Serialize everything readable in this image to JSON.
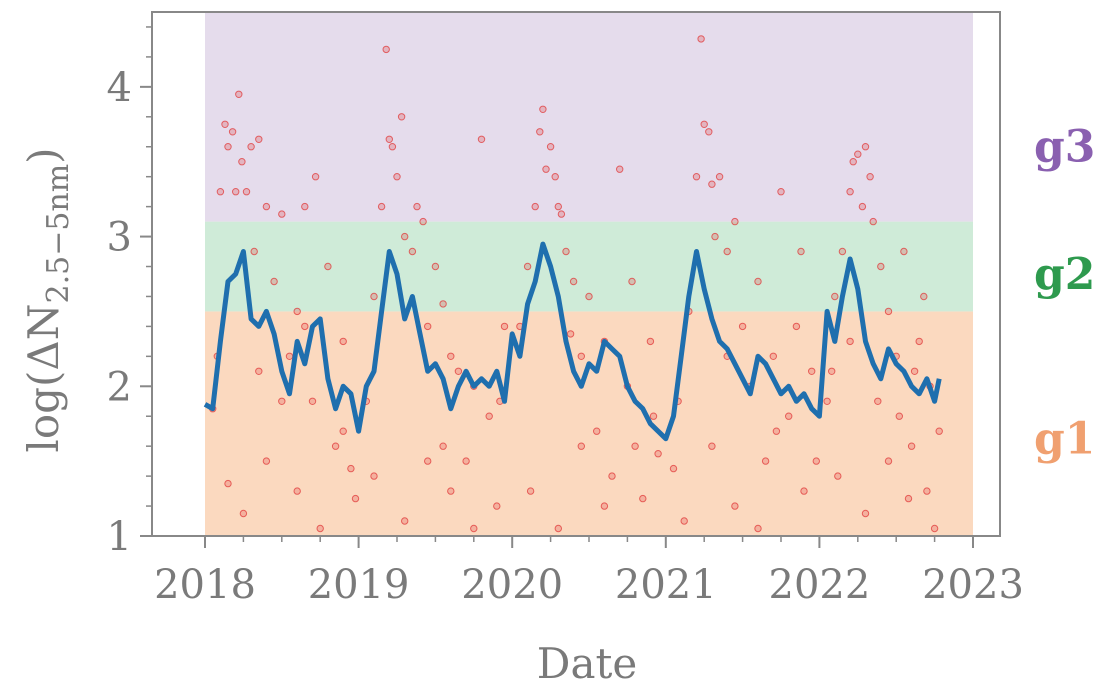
{
  "chart_data": {
    "type": "scatter",
    "title": "",
    "xlabel": "Date",
    "ylabel": "log(ΔN",
    "ylabel_subscript": "2.5−5nm",
    "ylabel_close": ")",
    "xlim": [
      2018.0,
      2023.0
    ],
    "ylim": [
      1,
      4.5
    ],
    "x_ticks": [
      2018,
      2019,
      2020,
      2021,
      2022,
      2023
    ],
    "x_tick_labels": [
      "2018",
      "2019",
      "2020",
      "2021",
      "2022",
      "2023"
    ],
    "y_ticks": [
      1,
      2,
      3,
      4
    ],
    "y_tick_labels": [
      "1",
      "2",
      "3",
      "4"
    ],
    "grid": false,
    "bands": [
      {
        "name": "g1",
        "y_from": 1,
        "y_to": 2.5,
        "color": "#fbd9bf",
        "label_color": "#f0a070"
      },
      {
        "name": "g2",
        "y_from": 2.5,
        "y_to": 3.1,
        "color": "#cfebd8",
        "label_color": "#2e9a4e"
      },
      {
        "name": "g3",
        "y_from": 3.1,
        "y_to": 4.5,
        "color": "#e5dcec",
        "label_color": "#8a60b0"
      }
    ],
    "band_x_range": [
      2018.0,
      2023.0
    ],
    "series": [
      {
        "kind": "scatter",
        "color": "#e03a3a",
        "points": [
          [
            2018.05,
            1.85
          ],
          [
            2018.08,
            2.2
          ],
          [
            2018.1,
            3.3
          ],
          [
            2018.13,
            3.75
          ],
          [
            2018.15,
            3.6
          ],
          [
            2018.18,
            3.7
          ],
          [
            2018.2,
            3.3
          ],
          [
            2018.22,
            3.95
          ],
          [
            2018.24,
            3.5
          ],
          [
            2018.27,
            3.3
          ],
          [
            2018.3,
            3.6
          ],
          [
            2018.32,
            2.9
          ],
          [
            2018.35,
            3.65
          ],
          [
            2018.4,
            3.2
          ],
          [
            2018.45,
            2.7
          ],
          [
            2018.5,
            3.15
          ],
          [
            2018.55,
            2.2
          ],
          [
            2018.6,
            2.5
          ],
          [
            2018.65,
            3.2
          ],
          [
            2018.7,
            1.9
          ],
          [
            2018.72,
            3.4
          ],
          [
            2018.8,
            2.8
          ],
          [
            2018.85,
            1.6
          ],
          [
            2018.9,
            2.3
          ],
          [
            2018.95,
            1.45
          ],
          [
            2018.98,
            1.25
          ],
          [
            2018.15,
            1.35
          ],
          [
            2018.25,
            1.15
          ],
          [
            2018.4,
            1.5
          ],
          [
            2018.6,
            1.3
          ],
          [
            2018.75,
            1.05
          ],
          [
            2018.9,
            1.7
          ],
          [
            2018.35,
            2.1
          ],
          [
            2018.5,
            1.9
          ],
          [
            2018.65,
            2.4
          ],
          [
            2019.05,
            1.9
          ],
          [
            2019.1,
            2.6
          ],
          [
            2019.15,
            3.2
          ],
          [
            2019.18,
            4.25
          ],
          [
            2019.2,
            3.65
          ],
          [
            2019.22,
            3.6
          ],
          [
            2019.25,
            3.4
          ],
          [
            2019.28,
            3.8
          ],
          [
            2019.3,
            3.0
          ],
          [
            2019.35,
            2.9
          ],
          [
            2019.38,
            3.2
          ],
          [
            2019.42,
            3.1
          ],
          [
            2019.45,
            2.4
          ],
          [
            2019.5,
            2.8
          ],
          [
            2019.55,
            1.6
          ],
          [
            2019.6,
            1.3
          ],
          [
            2019.65,
            2.1
          ],
          [
            2019.7,
            1.5
          ],
          [
            2019.75,
            2.0
          ],
          [
            2019.8,
            3.65
          ],
          [
            2019.85,
            1.8
          ],
          [
            2019.9,
            1.2
          ],
          [
            2019.95,
            2.4
          ],
          [
            2019.1,
            1.4
          ],
          [
            2019.3,
            1.1
          ],
          [
            2019.45,
            1.5
          ],
          [
            2019.6,
            2.2
          ],
          [
            2019.75,
            1.05
          ],
          [
            2019.92,
            1.9
          ],
          [
            2019.55,
            2.55
          ],
          [
            2020.05,
            2.4
          ],
          [
            2020.1,
            2.8
          ],
          [
            2020.15,
            3.2
          ],
          [
            2020.18,
            3.7
          ],
          [
            2020.2,
            3.85
          ],
          [
            2020.22,
            3.45
          ],
          [
            2020.25,
            3.6
          ],
          [
            2020.28,
            3.4
          ],
          [
            2020.3,
            3.2
          ],
          [
            2020.32,
            3.15
          ],
          [
            2020.35,
            2.9
          ],
          [
            2020.4,
            2.7
          ],
          [
            2020.45,
            2.2
          ],
          [
            2020.5,
            2.6
          ],
          [
            2020.55,
            1.7
          ],
          [
            2020.6,
            2.3
          ],
          [
            2020.65,
            1.4
          ],
          [
            2020.7,
            3.45
          ],
          [
            2020.75,
            2.0
          ],
          [
            2020.8,
            1.6
          ],
          [
            2020.85,
            1.25
          ],
          [
            2020.9,
            2.3
          ],
          [
            2020.95,
            1.55
          ],
          [
            2020.12,
            1.3
          ],
          [
            2020.3,
            1.05
          ],
          [
            2020.45,
            1.6
          ],
          [
            2020.6,
            1.2
          ],
          [
            2020.78,
            2.7
          ],
          [
            2020.92,
            1.8
          ],
          [
            2020.38,
            2.35
          ],
          [
            2021.05,
            1.45
          ],
          [
            2021.08,
            1.9
          ],
          [
            2021.15,
            2.5
          ],
          [
            2021.2,
            3.4
          ],
          [
            2021.23,
            4.32
          ],
          [
            2021.25,
            3.75
          ],
          [
            2021.28,
            3.7
          ],
          [
            2021.3,
            3.35
          ],
          [
            2021.32,
            3.0
          ],
          [
            2021.35,
            3.4
          ],
          [
            2021.4,
            2.9
          ],
          [
            2021.45,
            3.1
          ],
          [
            2021.5,
            2.4
          ],
          [
            2021.55,
            2.0
          ],
          [
            2021.6,
            2.7
          ],
          [
            2021.65,
            1.5
          ],
          [
            2021.7,
            2.2
          ],
          [
            2021.75,
            3.3
          ],
          [
            2021.8,
            1.8
          ],
          [
            2021.85,
            2.4
          ],
          [
            2021.9,
            1.3
          ],
          [
            2021.95,
            2.1
          ],
          [
            2021.12,
            1.1
          ],
          [
            2021.3,
            1.6
          ],
          [
            2021.45,
            1.2
          ],
          [
            2021.6,
            1.05
          ],
          [
            2021.72,
            1.7
          ],
          [
            2021.88,
            2.9
          ],
          [
            2021.98,
            1.5
          ],
          [
            2021.4,
            2.2
          ],
          [
            2022.05,
            1.9
          ],
          [
            2022.1,
            2.6
          ],
          [
            2022.15,
            2.9
          ],
          [
            2022.2,
            3.3
          ],
          [
            2022.22,
            3.5
          ],
          [
            2022.25,
            3.55
          ],
          [
            2022.28,
            3.2
          ],
          [
            2022.3,
            3.6
          ],
          [
            2022.33,
            3.4
          ],
          [
            2022.35,
            3.1
          ],
          [
            2022.4,
            2.8
          ],
          [
            2022.45,
            2.5
          ],
          [
            2022.5,
            2.2
          ],
          [
            2022.55,
            2.9
          ],
          [
            2022.6,
            1.6
          ],
          [
            2022.65,
            2.3
          ],
          [
            2022.7,
            1.3
          ],
          [
            2022.72,
            2.0
          ],
          [
            2022.75,
            1.05
          ],
          [
            2022.78,
            1.7
          ],
          [
            2022.12,
            1.4
          ],
          [
            2022.3,
            1.15
          ],
          [
            2022.45,
            1.5
          ],
          [
            2022.58,
            1.25
          ],
          [
            2022.68,
            2.6
          ],
          [
            2022.08,
            2.1
          ],
          [
            2022.2,
            2.3
          ],
          [
            2022.38,
            1.9
          ],
          [
            2022.52,
            1.8
          ],
          [
            2022.62,
            2.1
          ]
        ]
      },
      {
        "kind": "line",
        "color": "#1f6fae",
        "x": [
          2018.0,
          2018.05,
          2018.1,
          2018.15,
          2018.2,
          2018.25,
          2018.3,
          2018.35,
          2018.4,
          2018.45,
          2018.5,
          2018.55,
          2018.6,
          2018.65,
          2018.7,
          2018.75,
          2018.8,
          2018.85,
          2018.9,
          2018.95,
          2019.0,
          2019.05,
          2019.1,
          2019.15,
          2019.2,
          2019.25,
          2019.3,
          2019.35,
          2019.4,
          2019.45,
          2019.5,
          2019.55,
          2019.6,
          2019.65,
          2019.7,
          2019.75,
          2019.8,
          2019.85,
          2019.9,
          2019.95,
          2020.0,
          2020.05,
          2020.1,
          2020.15,
          2020.2,
          2020.25,
          2020.3,
          2020.35,
          2020.4,
          2020.45,
          2020.5,
          2020.55,
          2020.6,
          2020.65,
          2020.7,
          2020.75,
          2020.8,
          2020.85,
          2020.9,
          2020.95,
          2021.0,
          2021.05,
          2021.1,
          2021.15,
          2021.2,
          2021.25,
          2021.3,
          2021.35,
          2021.4,
          2021.45,
          2021.5,
          2021.55,
          2021.6,
          2021.65,
          2021.7,
          2021.75,
          2021.8,
          2021.85,
          2021.9,
          2021.95,
          2022.0,
          2022.05,
          2022.1,
          2022.15,
          2022.2,
          2022.25,
          2022.3,
          2022.35,
          2022.4,
          2022.45,
          2022.5,
          2022.55,
          2022.6,
          2022.65,
          2022.7,
          2022.75,
          2022.78
        ],
        "y": [
          1.88,
          1.85,
          2.3,
          2.7,
          2.75,
          2.9,
          2.45,
          2.4,
          2.5,
          2.35,
          2.1,
          1.95,
          2.3,
          2.15,
          2.4,
          2.45,
          2.05,
          1.85,
          2.0,
          1.95,
          1.7,
          2.0,
          2.1,
          2.5,
          2.9,
          2.75,
          2.45,
          2.6,
          2.35,
          2.1,
          2.15,
          2.05,
          1.85,
          2.0,
          2.1,
          2.0,
          2.05,
          2.0,
          2.1,
          1.9,
          2.35,
          2.2,
          2.55,
          2.7,
          2.95,
          2.8,
          2.6,
          2.3,
          2.1,
          2.0,
          2.15,
          2.1,
          2.3,
          2.25,
          2.2,
          2.0,
          1.9,
          1.85,
          1.75,
          1.7,
          1.65,
          1.8,
          2.2,
          2.6,
          2.9,
          2.65,
          2.45,
          2.3,
          2.25,
          2.15,
          2.05,
          1.95,
          2.2,
          2.15,
          2.05,
          1.95,
          2.0,
          1.9,
          1.95,
          1.85,
          1.8,
          2.5,
          2.3,
          2.6,
          2.85,
          2.65,
          2.3,
          2.15,
          2.05,
          2.25,
          2.15,
          2.1,
          2.0,
          1.95,
          2.05,
          1.9,
          2.05
        ]
      }
    ]
  }
}
